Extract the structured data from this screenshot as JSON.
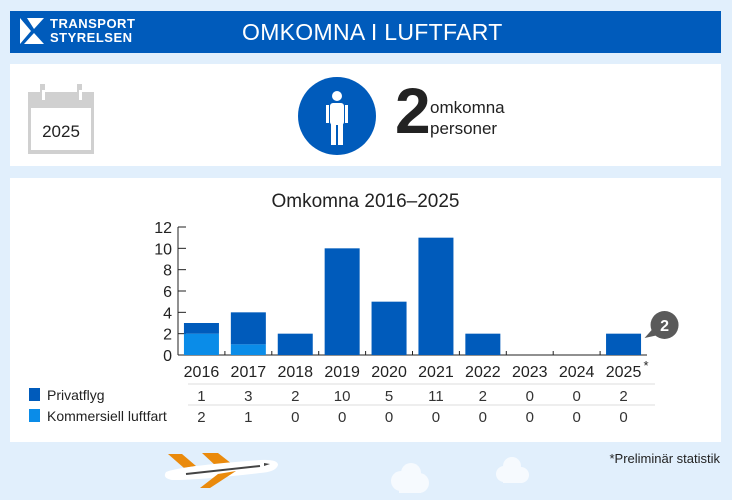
{
  "header": {
    "logo_line1": "TRANSPORT",
    "logo_line2": "STYRELSEN",
    "title": "OMKOMNA I LUFTFART"
  },
  "summary": {
    "year": "2025",
    "count": "2",
    "label_line1": "omkomna",
    "label_line2": "personer",
    "icon": "person-icon"
  },
  "colors": {
    "brand": "#005bbb",
    "privatflyg": "#005bbb",
    "kommersiell": "#0a8ce8",
    "callout": "#5a5a5a",
    "plane_wing": "#ea8a0c"
  },
  "chart_data": {
    "type": "bar",
    "stacked": true,
    "title": "Omkomna 2016–2025",
    "categories": [
      "2016",
      "2017",
      "2018",
      "2019",
      "2020",
      "2021",
      "2022",
      "2023",
      "2024",
      "2025*"
    ],
    "series": [
      {
        "name": "Privatflyg",
        "values": [
          1,
          3,
          2,
          10,
          5,
          11,
          2,
          0,
          0,
          2
        ],
        "color": "#005bbb"
      },
      {
        "name": "Kommersiell luftfart",
        "values": [
          2,
          1,
          0,
          0,
          0,
          0,
          0,
          0,
          0,
          0
        ],
        "color": "#0a8ce8"
      }
    ],
    "yticks": [
      0,
      2,
      4,
      6,
      8,
      10,
      12
    ],
    "ylim": [
      0,
      12
    ],
    "xlabel": "",
    "ylabel": "",
    "grid": false,
    "legend_position": "table-below",
    "annotation": {
      "category": "2025*",
      "text": "2"
    }
  },
  "footnote": "*Preliminär statistik"
}
